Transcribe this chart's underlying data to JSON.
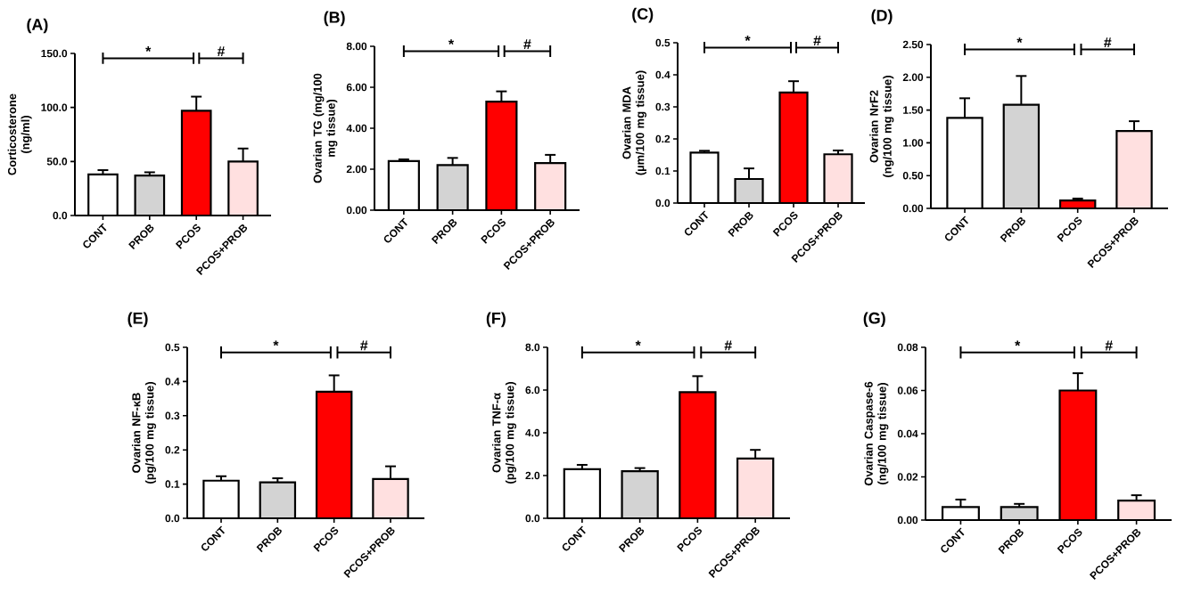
{
  "chart_data": [
    {
      "type": "bar",
      "title": "(A)",
      "ylabel": "Corticosterone (ng/ml)",
      "categories": [
        "CONT",
        "PROB",
        "PCOS",
        "PCOS+PROB"
      ],
      "values": [
        38,
        37,
        97,
        50
      ],
      "errors": [
        4,
        3,
        13,
        12
      ],
      "colors": [
        "#ffffff",
        "#d3d3d3",
        "#ff0000",
        "#ffe0e0"
      ],
      "ylim": [
        0,
        150
      ],
      "yticks": [
        {
          "value": 0,
          "label": "0.0"
        },
        {
          "value": 50,
          "label": "50.0"
        },
        {
          "value": 100,
          "label": "100.0"
        },
        {
          "value": 150,
          "label": "150.0"
        }
      ],
      "annotations": [
        "*",
        "#"
      ]
    },
    {
      "type": "bar",
      "title": "(B)",
      "ylabel": "Ovarian TG (mg/100 mg tissue)",
      "categories": [
        "CONT",
        "PROB",
        "PCOS",
        "PCOS+PROB"
      ],
      "values": [
        2.4,
        2.2,
        5.3,
        2.3
      ],
      "errors": [
        0.08,
        0.35,
        0.5,
        0.4
      ],
      "colors": [
        "#ffffff",
        "#d3d3d3",
        "#ff0000",
        "#ffe0e0"
      ],
      "ylim": [
        0,
        8
      ],
      "yticks": [
        {
          "value": 0,
          "label": "0.00"
        },
        {
          "value": 2,
          "label": "2.00"
        },
        {
          "value": 4,
          "label": "4.00"
        },
        {
          "value": 6,
          "label": "6.00"
        },
        {
          "value": 8,
          "label": "8.00"
        }
      ],
      "annotations": [
        "*",
        "#"
      ]
    },
    {
      "type": "bar",
      "title": "(C)",
      "ylabel": "Ovarian MDA (µm/100 mg tissue)",
      "categories": [
        "CONT",
        "PROB",
        "PCOS",
        "PCOS+PROB"
      ],
      "values": [
        0.157,
        0.075,
        0.345,
        0.152
      ],
      "errors": [
        0.006,
        0.033,
        0.035,
        0.012
      ],
      "colors": [
        "#ffffff",
        "#d3d3d3",
        "#ff0000",
        "#ffe0e0"
      ],
      "ylim": [
        0,
        0.5
      ],
      "yticks": [
        {
          "value": 0,
          "label": "0.0"
        },
        0.1,
        0.2,
        0.3,
        0.4,
        0.5
      ],
      "annotations": [
        "*",
        "#"
      ]
    },
    {
      "type": "bar",
      "title": "(D)",
      "ylabel": "Ovarian NrF2 (ng/100 mg tissue)",
      "categories": [
        "CONT",
        "PROB",
        "PCOS",
        "PCOS+PROB"
      ],
      "values": [
        1.38,
        1.58,
        0.12,
        1.18
      ],
      "errors": [
        0.3,
        0.44,
        0.03,
        0.15
      ],
      "colors": [
        "#ffffff",
        "#d3d3d3",
        "#ff0000",
        "#ffe0e0"
      ],
      "ylim": [
        0,
        2.5
      ],
      "yticks": [
        {
          "value": 0,
          "label": "0.00"
        },
        {
          "value": 0.5,
          "label": "0.50"
        },
        {
          "value": 1,
          "label": "1.00"
        },
        {
          "value": 1.5,
          "label": "1.50"
        },
        {
          "value": 2,
          "label": "2.00"
        },
        {
          "value": 2.5,
          "label": "2.50"
        }
      ],
      "annotations": [
        "*",
        "#"
      ]
    },
    {
      "type": "bar",
      "title": "(E)",
      "ylabel": "Ovarian NF-κB (pg/100 mg tissue)",
      "categories": [
        "CONT",
        "PROB",
        "PCOS",
        "PCOS+PROB"
      ],
      "values": [
        0.11,
        0.105,
        0.37,
        0.115
      ],
      "errors": [
        0.013,
        0.012,
        0.048,
        0.037
      ],
      "colors": [
        "#ffffff",
        "#d3d3d3",
        "#ff0000",
        "#ffe0e0"
      ],
      "ylim": [
        0,
        0.5
      ],
      "yticks": [
        {
          "value": 0,
          "label": "0.0"
        },
        0.1,
        0.2,
        0.3,
        0.4,
        0.5
      ],
      "annotations": [
        "*",
        "#"
      ]
    },
    {
      "type": "bar",
      "title": "(F)",
      "ylabel": "Ovarian TNF-α (pg/100 mg tissue)",
      "categories": [
        "CONT",
        "PROB",
        "PCOS",
        "PCOS+PROB"
      ],
      "values": [
        2.3,
        2.2,
        5.9,
        2.8
      ],
      "errors": [
        0.2,
        0.15,
        0.75,
        0.4
      ],
      "colors": [
        "#ffffff",
        "#d3d3d3",
        "#ff0000",
        "#ffe0e0"
      ],
      "ylim": [
        0,
        8
      ],
      "yticks": [
        {
          "value": 0,
          "label": "0.0"
        },
        {
          "value": 2,
          "label": "2.0"
        },
        {
          "value": 4,
          "label": "4.0"
        },
        {
          "value": 6,
          "label": "6.0"
        },
        {
          "value": 8,
          "label": "8.0"
        }
      ],
      "annotations": [
        "*",
        "#"
      ]
    },
    {
      "type": "bar",
      "title": "(G)",
      "ylabel": "Ovarian Caspase-6 (ng/100 mg tissue)",
      "categories": [
        "CONT",
        "PROB",
        "PCOS",
        "PCOS+PROB"
      ],
      "values": [
        0.006,
        0.006,
        0.06,
        0.009
      ],
      "errors": [
        0.0035,
        0.0015,
        0.008,
        0.0025
      ],
      "colors": [
        "#ffffff",
        "#d3d3d3",
        "#ff0000",
        "#ffe0e0"
      ],
      "ylim": [
        0,
        0.08
      ],
      "yticks": [
        {
          "value": 0,
          "label": "0.00"
        },
        {
          "value": 0.02,
          "label": "0.02"
        },
        {
          "value": 0.04,
          "label": "0.04"
        },
        {
          "value": 0.06,
          "label": "0.06"
        },
        {
          "value": 0.08,
          "label": "0.08"
        }
      ],
      "annotations": [
        "*",
        "#"
      ]
    }
  ]
}
